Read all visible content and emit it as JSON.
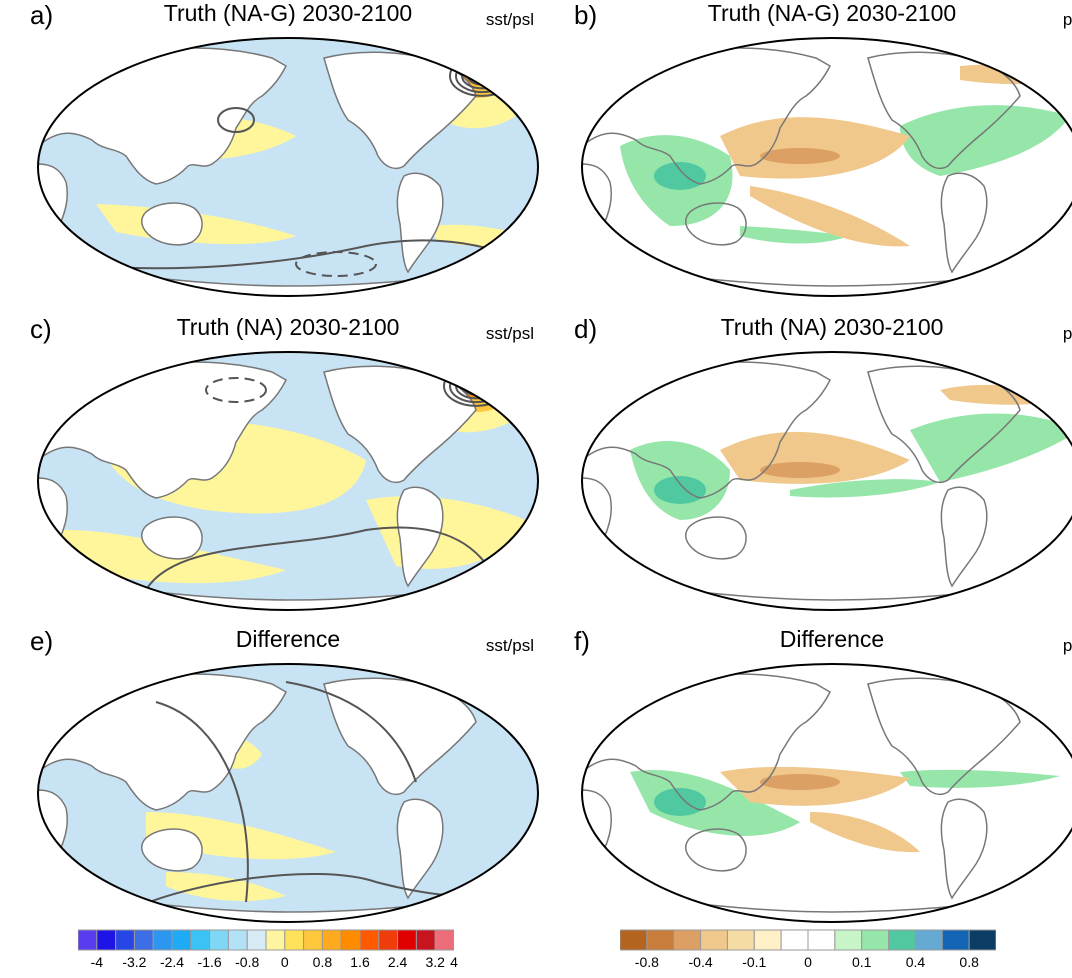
{
  "chart_data": [
    {
      "type": "heatmap",
      "panel": "a)",
      "title": "Truth (NA-G) 2030-2100",
      "variable": "sst/psl",
      "description_fields": {
        "filled": "sst",
        "contours": "psl"
      }
    },
    {
      "type": "heatmap",
      "panel": "b)",
      "title": "Truth (NA-G) 2030-2100",
      "variable": "pr"
    },
    {
      "type": "heatmap",
      "panel": "c)",
      "title": "Truth (NA) 2030-2100",
      "variable": "sst/psl",
      "description_fields": {
        "filled": "sst",
        "contours": "psl"
      }
    },
    {
      "type": "heatmap",
      "panel": "d)",
      "title": "Truth (NA) 2030-2100",
      "variable": "pr"
    },
    {
      "type": "heatmap",
      "panel": "e)",
      "title": "Difference",
      "variable": "sst/psl",
      "description_fields": {
        "filled": "sst",
        "contours": "psl"
      }
    },
    {
      "type": "heatmap",
      "panel": "f)",
      "title": "Difference",
      "variable": "pr"
    }
  ],
  "colorbars": {
    "sst": {
      "colors": [
        "#5a3cf0",
        "#1e14e6",
        "#2846e6",
        "#3c6ee6",
        "#2d96f0",
        "#1eaaf5",
        "#3cc3f5",
        "#7dd7f5",
        "#b4e1f5",
        "#d7ebf5",
        "#fff5a0",
        "#ffe15a",
        "#ffc83c",
        "#ffaa1e",
        "#ff8c00",
        "#ff5a00",
        "#f03c0a",
        "#e10000",
        "#c8141e",
        "#eb6e78"
      ],
      "ticks": [
        "-4",
        "-3.2",
        "-2.4",
        "-1.6",
        "-0.8",
        "0",
        "0.8",
        "1.6",
        "2.4",
        "3.2",
        "4"
      ]
    },
    "pr": {
      "colors": [
        "#b4641e",
        "#c87d3c",
        "#dca064",
        "#f0c88c",
        "#f5dca5",
        "#fff0c8",
        "#ffffff",
        "#ffffff",
        "#c8f5c8",
        "#96e6aa",
        "#50c8a0",
        "#64aad2",
        "#1464b4",
        "#0a3c64"
      ],
      "ticks": [
        "-0.8",
        "-0.4",
        "-0.1",
        "0",
        "0.1",
        "0.4",
        "0.8"
      ]
    }
  }
}
